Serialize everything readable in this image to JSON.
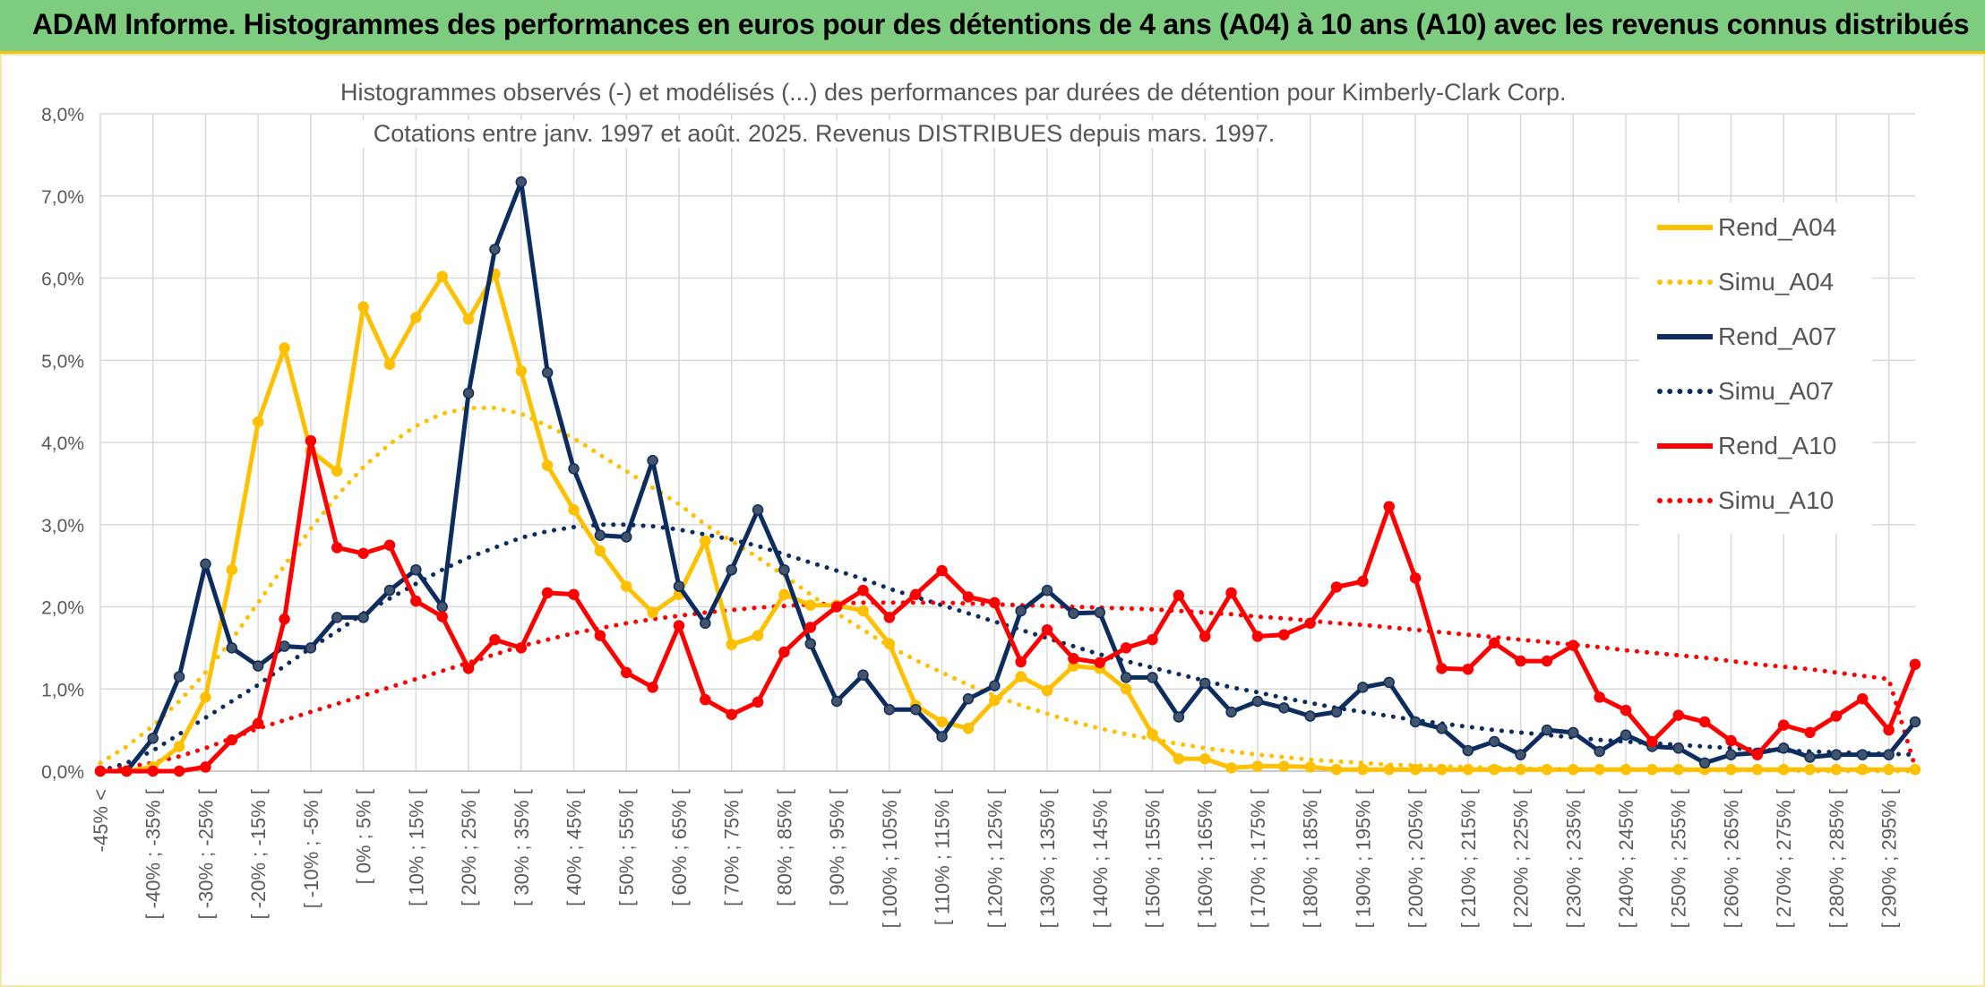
{
  "header": {
    "title": "ADAM Informe. Histogrammes des performances en euros pour des détentions de 4 ans (A04) à 10 ans (A10) avec les revenus connus distribués"
  },
  "chart_data": {
    "type": "line",
    "title": "Histogrammes observés (-) et modélisés (...) des performances par durées de détention pour Kimberly-Clark Corp.",
    "subtitle": "Cotations entre janv. 1997 et août. 2025. Revenus DISTRIBUES depuis mars. 1997.",
    "xlabel": "",
    "ylabel": "",
    "ylim": [
      0,
      8
    ],
    "y_ticks": [
      "0,0%",
      "1,0%",
      "2,0%",
      "3,0%",
      "4,0%",
      "5,0%",
      "6,0%",
      "7,0%",
      "8,0%"
    ],
    "grid": true,
    "legend_position": "right",
    "x_tick_labels": [
      "-45% <",
      "[ -40% ; -35% [",
      "[ -30% ; -25% [",
      "[ -20% ; -15% [",
      "[ -10% ; -5% [",
      "[ 0% ; 5% [",
      "[ 10% ; 15% [",
      "[ 20% ; 25% [",
      "[ 30% ; 35% [",
      "[ 40% ; 45% [",
      "[ 50% ; 55% [",
      "[ 60% ; 65% [",
      "[ 70% ; 75% [",
      "[ 80% ; 85% [",
      "[ 90% ; 95% [",
      "[ 100% ; 105% [",
      "[ 110% ; 115% [",
      "[ 120% ; 125% [",
      "[ 130% ; 135% [",
      "[ 140% ; 145% [",
      "[ 150% ; 155% [",
      "[ 160% ; 165% [",
      "[ 170% ; 175% [",
      "[ 180% ; 185% [",
      "[ 190% ; 195% [",
      "[ 200% ; 205% [",
      "[ 210% ; 215% [",
      "[ 220% ; 225% [",
      "[ 230% ; 235% [",
      "[ 240% ; 245% [",
      "[ 250% ; 255% [",
      "[ 260% ; 265% [",
      "[ 270% ; 275% [",
      "[ 280% ; 285% [",
      "[ 290% ; 295% ["
    ],
    "series": [
      {
        "name": "Rend_A04",
        "color": "#ffc000",
        "style": "solid",
        "markers": true,
        "values": [
          0,
          0,
          0.05,
          0.3,
          0.9,
          2.45,
          4.25,
          5.15,
          3.9,
          3.65,
          5.65,
          4.95,
          5.52,
          6.02,
          5.5,
          6.05,
          4.87,
          3.72,
          3.18,
          2.68,
          2.25,
          1.93,
          2.15,
          2.8,
          1.54,
          1.65,
          2.15,
          2.02,
          2.02,
          1.95,
          1.55,
          0.8,
          0.6,
          0.52,
          0.86,
          1.15,
          0.98,
          1.28,
          1.25,
          1.0,
          0.45,
          0.15,
          0.15,
          0.04,
          0.06,
          0.06,
          0.05,
          0.02,
          0.02,
          0.02,
          0.02,
          0.02,
          0.02,
          0.02,
          0.02,
          0.02,
          0.02,
          0.02,
          0.02,
          0.02,
          0.02,
          0.02,
          0.02,
          0.02,
          0.02,
          0.02,
          0.02,
          0.02,
          0.02,
          0.02
        ]
      },
      {
        "name": "Simu_A04",
        "color": "#ffc000",
        "style": "dotted",
        "markers": false,
        "values": [
          0.1,
          0.3,
          0.55,
          0.85,
          1.2,
          1.6,
          2.05,
          2.5,
          2.95,
          3.35,
          3.7,
          3.98,
          4.2,
          4.35,
          4.42,
          4.42,
          4.35,
          4.2,
          4.05,
          3.85,
          3.65,
          3.45,
          3.25,
          3.0,
          2.8,
          2.6,
          2.38,
          2.15,
          1.92,
          1.72,
          1.52,
          1.35,
          1.2,
          1.05,
          0.92,
          0.8,
          0.7,
          0.6,
          0.52,
          0.45,
          0.39,
          0.33,
          0.28,
          0.24,
          0.2,
          0.17,
          0.14,
          0.12,
          0.1,
          0.08,
          0.07,
          0.06,
          0.05,
          0.04,
          0.03,
          0.03,
          0.02,
          0.02,
          0.02,
          0.01,
          0.01,
          0.01,
          0.01,
          0.01,
          0.01,
          0.0,
          0.0,
          0.0,
          0.0,
          0.0
        ]
      },
      {
        "name": "Rend_A07",
        "color": "#0d2d5e",
        "style": "solid",
        "markers": true,
        "values": [
          0,
          0,
          0.4,
          1.15,
          2.52,
          1.5,
          1.28,
          1.52,
          1.5,
          1.87,
          1.87,
          2.2,
          2.45,
          2.0,
          4.6,
          6.35,
          7.17,
          4.85,
          3.68,
          2.87,
          2.85,
          3.78,
          2.25,
          1.8,
          2.45,
          3.18,
          2.45,
          1.55,
          0.85,
          1.17,
          0.75,
          0.75,
          0.42,
          0.88,
          1.04,
          1.95,
          2.2,
          1.92,
          1.93,
          1.14,
          1.14,
          0.66,
          1.07,
          0.72,
          0.85,
          0.77,
          0.67,
          0.72,
          1.02,
          1.08,
          0.6,
          0.52,
          0.25,
          0.36,
          0.2,
          0.5,
          0.47,
          0.24,
          0.44,
          0.3,
          0.28,
          0.1,
          0.2,
          0.22,
          0.28,
          0.17,
          0.2,
          0.2,
          0.2,
          0.6
        ]
      },
      {
        "name": "Simu_A07",
        "color": "#0d2d5e",
        "style": "dotted",
        "markers": false,
        "values": [
          0.0,
          0.1,
          0.25,
          0.45,
          0.65,
          0.85,
          1.05,
          1.28,
          1.5,
          1.7,
          1.92,
          2.1,
          2.28,
          2.45,
          2.6,
          2.72,
          2.84,
          2.92,
          2.97,
          3.0,
          3.0,
          2.98,
          2.94,
          2.88,
          2.82,
          2.74,
          2.64,
          2.54,
          2.44,
          2.34,
          2.22,
          2.12,
          2.02,
          1.92,
          1.82,
          1.72,
          1.62,
          1.52,
          1.42,
          1.34,
          1.26,
          1.18,
          1.1,
          1.02,
          0.96,
          0.89,
          0.83,
          0.77,
          0.72,
          0.67,
          0.62,
          0.58,
          0.54,
          0.5,
          0.47,
          0.44,
          0.41,
          0.38,
          0.36,
          0.34,
          0.32,
          0.3,
          0.28,
          0.26,
          0.25,
          0.24,
          0.23,
          0.22,
          0.21,
          0.2
        ]
      },
      {
        "name": "Rend_A10",
        "color": "#ff0000",
        "style": "solid",
        "markers": true,
        "values": [
          0,
          0,
          0,
          0,
          0.05,
          0.38,
          0.58,
          1.85,
          4.02,
          2.72,
          2.65,
          2.75,
          2.07,
          1.88,
          1.25,
          1.6,
          1.5,
          2.17,
          2.15,
          1.65,
          1.2,
          1.02,
          1.77,
          0.87,
          0.69,
          0.84,
          1.45,
          1.75,
          2.0,
          2.2,
          1.87,
          2.15,
          2.44,
          2.12,
          2.05,
          1.33,
          1.72,
          1.37,
          1.32,
          1.5,
          1.6,
          2.14,
          1.64,
          2.17,
          1.64,
          1.66,
          1.8,
          2.24,
          2.31,
          3.22,
          2.35,
          1.25,
          1.24,
          1.56,
          1.34,
          1.34,
          1.53,
          0.9,
          0.74,
          0.36,
          0.68,
          0.6,
          0.37,
          0.2,
          0.56,
          0.47,
          0.67,
          0.88,
          0.5,
          1.3
        ]
      },
      {
        "name": "Simu_A10",
        "color": "#ff0000",
        "style": "dotted",
        "markers": false,
        "values": [
          0.0,
          0.05,
          0.1,
          0.18,
          0.28,
          0.4,
          0.52,
          0.62,
          0.72,
          0.82,
          0.92,
          1.02,
          1.12,
          1.22,
          1.32,
          1.42,
          1.52,
          1.6,
          1.68,
          1.74,
          1.8,
          1.85,
          1.89,
          1.93,
          1.96,
          1.99,
          2.01,
          2.03,
          2.04,
          2.05,
          2.05,
          2.05,
          2.05,
          2.04,
          2.03,
          2.02,
          2.01,
          2.0,
          1.99,
          1.98,
          1.97,
          1.95,
          1.93,
          1.91,
          1.88,
          1.86,
          1.83,
          1.8,
          1.78,
          1.75,
          1.72,
          1.69,
          1.66,
          1.63,
          1.6,
          1.57,
          1.54,
          1.51,
          1.47,
          1.44,
          1.41,
          1.38,
          1.34,
          1.3,
          1.27,
          1.24,
          1.2,
          1.16,
          1.12,
          0.05
        ]
      }
    ]
  }
}
